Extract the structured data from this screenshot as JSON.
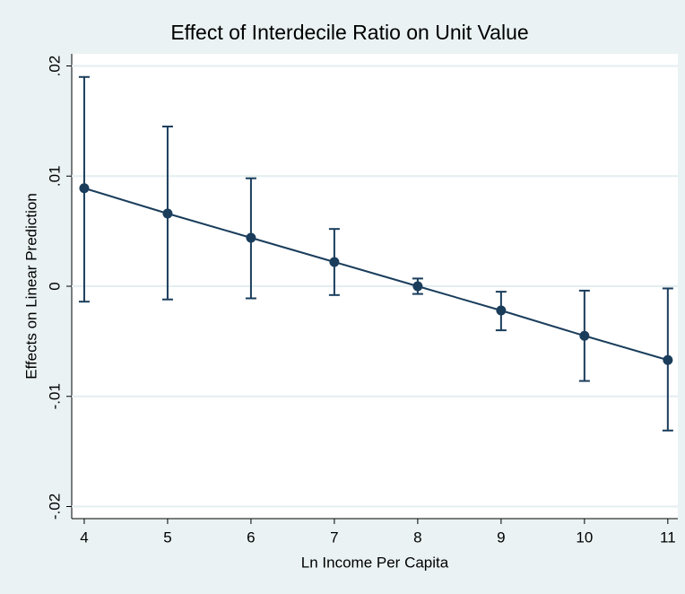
{
  "chart_data": {
    "type": "line",
    "title": "Effect of Interdecile Ratio on Unit Value",
    "x_label": "Ln Income Per Capita",
    "y_label": "Effects on Linear Prediction",
    "x": [
      4,
      5,
      6,
      7,
      8,
      9,
      10,
      11
    ],
    "series": [
      {
        "color": "#1a3d5c",
        "values": [
          0.0089,
          0.0066,
          0.0044,
          0.0022,
          0,
          -0.0022,
          -0.0045,
          -0.0067
        ],
        "ci_low": [
          -0.0014,
          -0.0012,
          -0.0011,
          -0.0008,
          -0.0007,
          -0.004,
          -0.0086,
          -0.0131
        ],
        "ci_high": [
          0.019,
          0.0145,
          0.0098,
          0.0052,
          0.0007,
          -0.0005,
          -0.0004,
          -0.0002
        ]
      }
    ],
    "xlim": [
      3.85,
      11.12
    ],
    "xticks": [
      4,
      5,
      6,
      7,
      8,
      9,
      10,
      11
    ],
    "ylim": [
      -0.0211,
      0.0211
    ],
    "yticks": [
      {
        "value": -0.02,
        "label": "-.02"
      },
      {
        "value": -0.01,
        "label": "-.01"
      },
      0,
      {
        "value": 0.01,
        "label": ".01"
      },
      {
        "value": 0.02,
        "label": ".02"
      }
    ],
    "grid": true
  }
}
